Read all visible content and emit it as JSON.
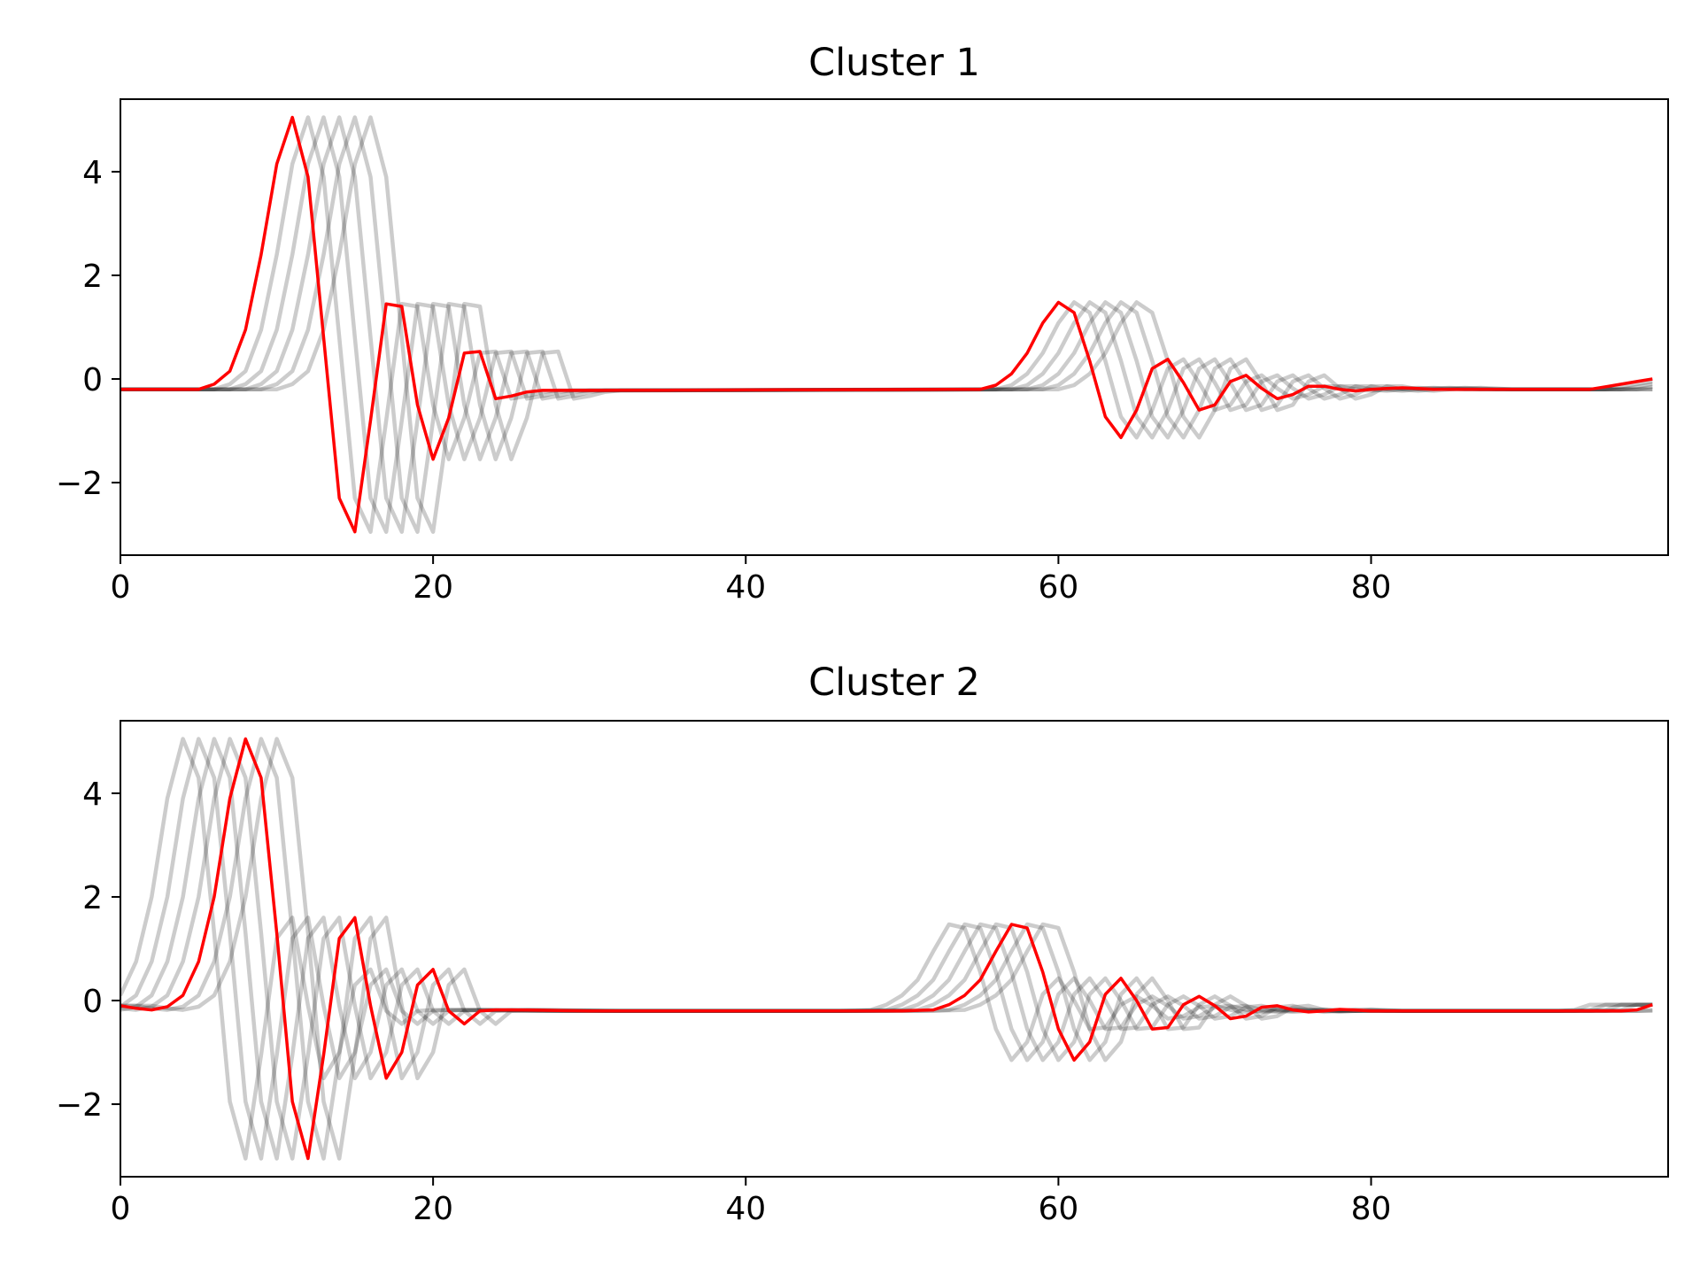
{
  "colors": {
    "background": "#ffffff",
    "axes_frame": "#000000",
    "member_series": "#000000",
    "member_opacity": 0.2,
    "centroid_series": "#ff0000"
  },
  "chart_data": [
    {
      "type": "line",
      "title": "Cluster 1",
      "xlabel": "",
      "ylabel": "",
      "xlim": [
        0,
        99
      ],
      "ylim": [
        -3.4,
        5.4
      ],
      "xticks": [
        0,
        20,
        40,
        60,
        80
      ],
      "xtick_labels": [
        "0",
        "20",
        "40",
        "60",
        "80"
      ],
      "yticks": [
        -2,
        0,
        2,
        4
      ],
      "ytick_labels": [
        "−2",
        "0",
        "2",
        "4"
      ],
      "grid": false,
      "legend": "none",
      "centroid_points": [
        [
          0,
          -0.2
        ],
        [
          5,
          -0.2
        ],
        [
          6,
          -0.1
        ],
        [
          7,
          0.15
        ],
        [
          8,
          0.95
        ],
        [
          9,
          2.4
        ],
        [
          10,
          4.15
        ],
        [
          11,
          5.05
        ],
        [
          12,
          3.9
        ],
        [
          13,
          0.8
        ],
        [
          14,
          -2.3
        ],
        [
          15,
          -2.95
        ],
        [
          16,
          -0.8
        ],
        [
          17,
          1.45
        ],
        [
          18,
          1.4
        ],
        [
          19,
          -0.5
        ],
        [
          20,
          -1.55
        ],
        [
          21,
          -0.75
        ],
        [
          22,
          0.5
        ],
        [
          23,
          0.53
        ],
        [
          24,
          -0.38
        ],
        [
          25,
          -0.33
        ],
        [
          26,
          -0.25
        ],
        [
          27,
          -0.22
        ],
        [
          30,
          -0.22
        ],
        [
          55,
          -0.2
        ],
        [
          56,
          -0.12
        ],
        [
          57,
          0.1
        ],
        [
          58,
          0.5
        ],
        [
          59,
          1.08
        ],
        [
          60,
          1.48
        ],
        [
          61,
          1.28
        ],
        [
          62,
          0.35
        ],
        [
          63,
          -0.73
        ],
        [
          64,
          -1.13
        ],
        [
          65,
          -0.6
        ],
        [
          66,
          0.2
        ],
        [
          67,
          0.38
        ],
        [
          68,
          -0.07
        ],
        [
          69,
          -0.6
        ],
        [
          70,
          -0.5
        ],
        [
          71,
          -0.05
        ],
        [
          72,
          0.07
        ],
        [
          73,
          -0.18
        ],
        [
          74,
          -0.38
        ],
        [
          75,
          -0.3
        ],
        [
          76,
          -0.14
        ],
        [
          77,
          -0.14
        ],
        [
          78,
          -0.2
        ],
        [
          79,
          -0.23
        ],
        [
          80,
          -0.2
        ],
        [
          82,
          -0.17
        ],
        [
          84,
          -0.2
        ],
        [
          94,
          -0.2
        ],
        [
          95,
          -0.15
        ],
        [
          96,
          -0.1
        ],
        [
          97,
          -0.05
        ],
        [
          98,
          0.0
        ]
      ],
      "member_shifts": [
        1,
        2,
        3,
        4,
        5
      ]
    },
    {
      "type": "line",
      "title": "Cluster 2",
      "xlabel": "",
      "ylabel": "",
      "xlim": [
        0,
        99
      ],
      "ylim": [
        -3.4,
        5.4
      ],
      "xticks": [
        0,
        20,
        40,
        60,
        80
      ],
      "xtick_labels": [
        "0",
        "20",
        "40",
        "60",
        "80"
      ],
      "yticks": [
        -2,
        0,
        2,
        4
      ],
      "ytick_labels": [
        "−2",
        "0",
        "2",
        "4"
      ],
      "grid": false,
      "legend": "none",
      "centroid_points": [
        [
          0,
          -0.1
        ],
        [
          1,
          -0.15
        ],
        [
          2,
          -0.18
        ],
        [
          3,
          -0.12
        ],
        [
          4,
          0.1
        ],
        [
          5,
          0.75
        ],
        [
          6,
          2.0
        ],
        [
          7,
          3.9
        ],
        [
          8,
          5.05
        ],
        [
          9,
          4.3
        ],
        [
          10,
          1.3
        ],
        [
          11,
          -1.95
        ],
        [
          12,
          -3.05
        ],
        [
          13,
          -1.05
        ],
        [
          14,
          1.2
        ],
        [
          15,
          1.6
        ],
        [
          16,
          -0.1
        ],
        [
          17,
          -1.5
        ],
        [
          18,
          -1.0
        ],
        [
          19,
          0.3
        ],
        [
          20,
          0.6
        ],
        [
          21,
          -0.2
        ],
        [
          22,
          -0.45
        ],
        [
          23,
          -0.2
        ],
        [
          24,
          -0.18
        ],
        [
          25,
          -0.18
        ],
        [
          30,
          -0.2
        ],
        [
          50,
          -0.2
        ],
        [
          52,
          -0.18
        ],
        [
          53,
          -0.08
        ],
        [
          54,
          0.1
        ],
        [
          55,
          0.4
        ],
        [
          56,
          0.95
        ],
        [
          57,
          1.47
        ],
        [
          58,
          1.4
        ],
        [
          59,
          0.55
        ],
        [
          60,
          -0.55
        ],
        [
          61,
          -1.15
        ],
        [
          62,
          -0.8
        ],
        [
          63,
          0.12
        ],
        [
          64,
          0.43
        ],
        [
          65,
          0.0
        ],
        [
          66,
          -0.55
        ],
        [
          67,
          -0.52
        ],
        [
          68,
          -0.08
        ],
        [
          69,
          0.08
        ],
        [
          70,
          -0.1
        ],
        [
          71,
          -0.35
        ],
        [
          72,
          -0.3
        ],
        [
          73,
          -0.13
        ],
        [
          74,
          -0.1
        ],
        [
          75,
          -0.18
        ],
        [
          76,
          -0.22
        ],
        [
          77,
          -0.2
        ],
        [
          78,
          -0.17
        ],
        [
          80,
          -0.2
        ],
        [
          96,
          -0.2
        ],
        [
          97,
          -0.18
        ],
        [
          98,
          -0.08
        ]
      ],
      "member_shifts": [
        -4,
        -3,
        -2,
        -1,
        1,
        2
      ]
    }
  ]
}
